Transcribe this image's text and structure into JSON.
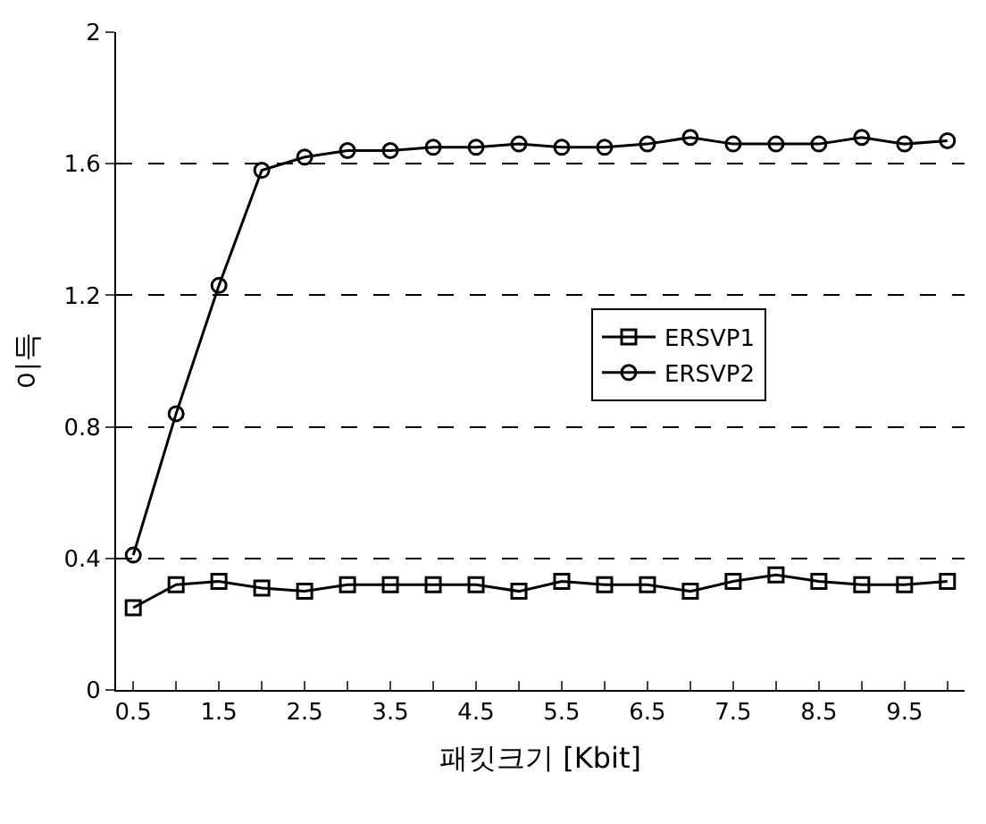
{
  "chart_data": {
    "type": "line",
    "xlabel": "패킷크기 [Kbit]",
    "ylabel": "이득",
    "x": [
      0.5,
      1,
      1.5,
      2,
      2.5,
      3,
      3.5,
      4,
      4.5,
      5,
      5.5,
      6,
      6.5,
      7,
      7.5,
      8,
      8.5,
      9,
      9.5,
      10
    ],
    "series": [
      {
        "name": "ERSVP1",
        "color": "#000000",
        "marker": "square",
        "values": [
          0.25,
          0.32,
          0.33,
          0.31,
          0.3,
          0.32,
          0.32,
          0.32,
          0.32,
          0.3,
          0.33,
          0.32,
          0.32,
          0.3,
          0.33,
          0.35,
          0.33,
          0.32,
          0.32,
          0.33
        ]
      },
      {
        "name": "ERSVP2",
        "color": "#000000",
        "marker": "circle",
        "values": [
          0.41,
          0.84,
          1.23,
          1.58,
          1.62,
          1.64,
          1.64,
          1.65,
          1.65,
          1.66,
          1.65,
          1.65,
          1.66,
          1.68,
          1.66,
          1.66,
          1.66,
          1.68,
          1.66,
          1.67
        ]
      }
    ],
    "xlim": [
      0.3,
      10.2
    ],
    "xticks": [
      0.5,
      {
        "value": 1,
        "label": null
      },
      1.5,
      {
        "value": 2,
        "label": null
      },
      2.5,
      {
        "value": 3,
        "label": null
      },
      3.5,
      {
        "value": 4,
        "label": null
      },
      4.5,
      {
        "value": 5,
        "label": null
      },
      5.5,
      {
        "value": 6,
        "label": null
      },
      6.5,
      {
        "value": 7,
        "label": null
      },
      7.5,
      {
        "value": 8,
        "label": null
      },
      8.5,
      {
        "value": 9,
        "label": null
      },
      9.5,
      {
        "value": 10,
        "label": null
      }
    ],
    "ylim": [
      0,
      2
    ],
    "yticks": [
      0,
      0.4,
      0.8,
      1.2,
      1.6,
      2
    ],
    "grid": "y",
    "legend": "right",
    "line_style": "solid"
  }
}
